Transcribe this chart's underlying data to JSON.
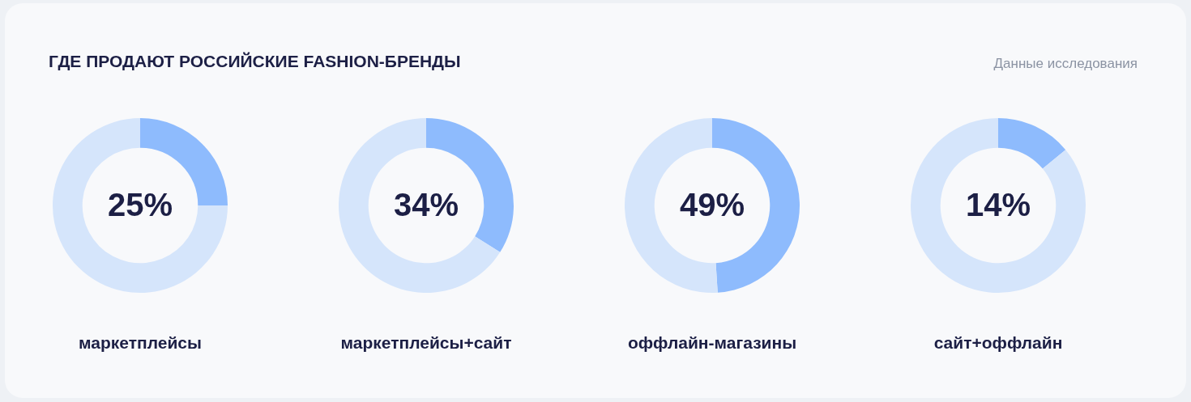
{
  "chart_data": [
    {
      "type": "other",
      "title": "ГДЕ ПРОДАЮТ РОССИЙСКИЕ FASHION-БРЕНДЫ",
      "annotations": [
        "Данные исследования"
      ]
    },
    {
      "type": "donut",
      "categories": [
        null,
        null
      ],
      "values": [
        25,
        75
      ],
      "colors": [
        "#8ebbfd",
        "#d5e5fb"
      ],
      "value_labels": [
        "25%",
        null
      ],
      "xlabel": "маркетплейсы"
    },
    {
      "type": "donut",
      "categories": [
        null,
        null
      ],
      "values": [
        34,
        66
      ],
      "colors": [
        "#8ebbfd",
        "#d5e5fb"
      ],
      "value_labels": [
        "34%",
        null
      ],
      "xlabel": "маркетплейсы+сайт"
    },
    {
      "type": "donut",
      "categories": [
        null,
        null
      ],
      "values": [
        49,
        51
      ],
      "colors": [
        "#8ebbfd",
        "#d5e5fb"
      ],
      "value_labels": [
        "49%",
        null
      ],
      "xlabel": "оффлайн-магазины"
    },
    {
      "type": "donut",
      "categories": [
        null,
        null
      ],
      "values": [
        14,
        86
      ],
      "colors": [
        "#8ebbfd",
        "#d5e5fb"
      ],
      "value_labels": [
        "14%",
        null
      ],
      "xlabel": "сайт+оффлайн"
    }
  ]
}
